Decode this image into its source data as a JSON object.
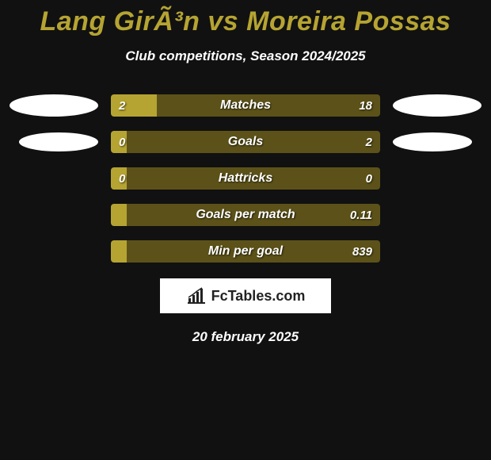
{
  "title": "Lang GirÃ³n vs Moreira Possas",
  "subtitle": "Club competitions, Season 2024/2025",
  "date": "20 february 2025",
  "brand": "FcTables.com",
  "colors": {
    "background": "#111111",
    "accent": "#b6a432",
    "bar_left": "#b6a432",
    "bar_right": "#5c5219",
    "text": "#ffffff",
    "ellipse": "#ffffff"
  },
  "rows": [
    {
      "label": "Matches",
      "left_value": "2",
      "right_value": "18",
      "left_pct": 17,
      "show_left_ellipse": true,
      "show_right_ellipse": true,
      "ellipse_small": false
    },
    {
      "label": "Goals",
      "left_value": "0",
      "right_value": "2",
      "left_pct": 6,
      "show_left_ellipse": true,
      "show_right_ellipse": true,
      "ellipse_small": true
    },
    {
      "label": "Hattricks",
      "left_value": "0",
      "right_value": "0",
      "left_pct": 6,
      "show_left_ellipse": false,
      "show_right_ellipse": false,
      "ellipse_small": false
    },
    {
      "label": "Goals per match",
      "left_value": "",
      "right_value": "0.11",
      "left_pct": 6,
      "show_left_ellipse": false,
      "show_right_ellipse": false,
      "ellipse_small": false
    },
    {
      "label": "Min per goal",
      "left_value": "",
      "right_value": "839",
      "left_pct": 6,
      "show_left_ellipse": false,
      "show_right_ellipse": false,
      "ellipse_small": false
    }
  ]
}
